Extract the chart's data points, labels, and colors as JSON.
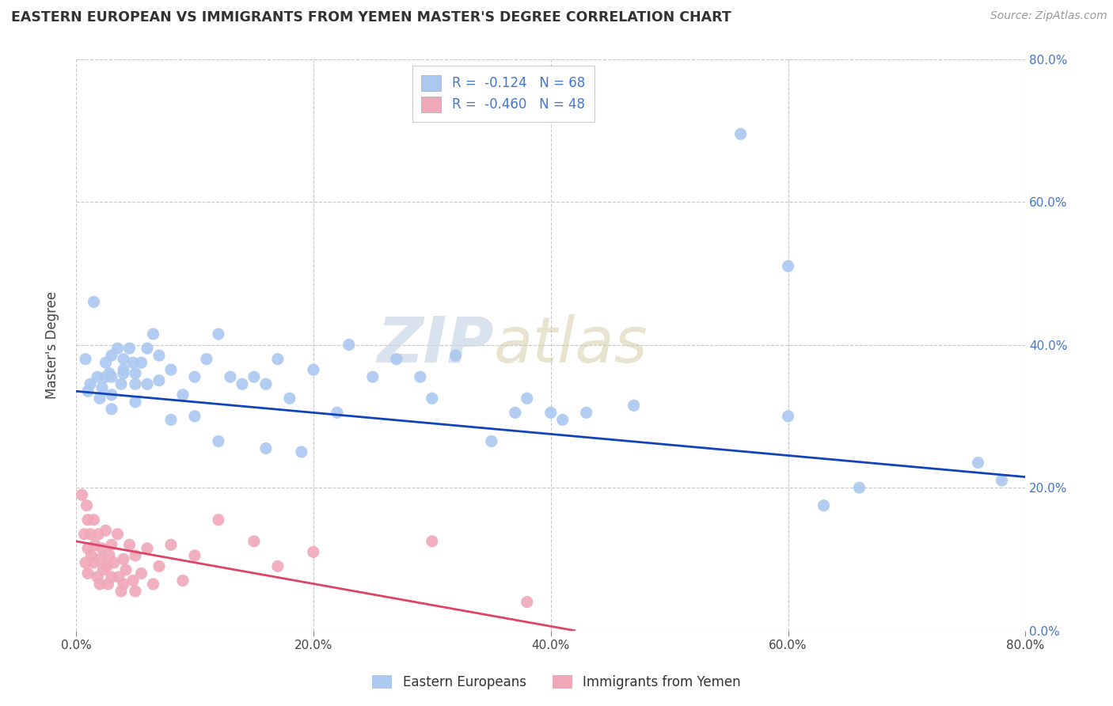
{
  "title": "EASTERN EUROPEAN VS IMMIGRANTS FROM YEMEN MASTER'S DEGREE CORRELATION CHART",
  "source": "Source: ZipAtlas.com",
  "ylabel": "Master's Degree",
  "xlim": [
    0.0,
    0.8
  ],
  "ylim": [
    0.0,
    0.8
  ],
  "ytick_values": [
    0.0,
    0.2,
    0.4,
    0.6,
    0.8
  ],
  "xtick_values": [
    0.0,
    0.2,
    0.4,
    0.6,
    0.8
  ],
  "xtick_labels": [
    "0.0%",
    "20.0%",
    "40.0%",
    "60.0%",
    "80.0%"
  ],
  "ytick_labels_right": [
    "0.0%",
    "20.0%",
    "40.0%",
    "60.0%",
    "80.0%"
  ],
  "grid_color": "#c8c8c8",
  "background_color": "#ffffff",
  "scatter_blue_color": "#aac8f0",
  "scatter_pink_color": "#f0a8b8",
  "line_blue_color": "#1144bb",
  "line_pink_color": "#dd4466",
  "marker_size": 120,
  "watermark_zip": "ZIP",
  "watermark_atlas": "atlas",
  "blue_points": [
    [
      0.008,
      0.38
    ],
    [
      0.01,
      0.335
    ],
    [
      0.012,
      0.345
    ],
    [
      0.015,
      0.46
    ],
    [
      0.018,
      0.355
    ],
    [
      0.02,
      0.325
    ],
    [
      0.022,
      0.34
    ],
    [
      0.025,
      0.355
    ],
    [
      0.025,
      0.375
    ],
    [
      0.028,
      0.36
    ],
    [
      0.03,
      0.385
    ],
    [
      0.03,
      0.355
    ],
    [
      0.03,
      0.33
    ],
    [
      0.03,
      0.31
    ],
    [
      0.035,
      0.395
    ],
    [
      0.038,
      0.345
    ],
    [
      0.04,
      0.365
    ],
    [
      0.04,
      0.38
    ],
    [
      0.04,
      0.36
    ],
    [
      0.045,
      0.395
    ],
    [
      0.048,
      0.375
    ],
    [
      0.05,
      0.36
    ],
    [
      0.05,
      0.345
    ],
    [
      0.05,
      0.32
    ],
    [
      0.055,
      0.375
    ],
    [
      0.06,
      0.345
    ],
    [
      0.06,
      0.395
    ],
    [
      0.065,
      0.415
    ],
    [
      0.07,
      0.35
    ],
    [
      0.07,
      0.385
    ],
    [
      0.08,
      0.295
    ],
    [
      0.08,
      0.365
    ],
    [
      0.09,
      0.33
    ],
    [
      0.1,
      0.355
    ],
    [
      0.1,
      0.3
    ],
    [
      0.11,
      0.38
    ],
    [
      0.12,
      0.265
    ],
    [
      0.12,
      0.415
    ],
    [
      0.13,
      0.355
    ],
    [
      0.14,
      0.345
    ],
    [
      0.15,
      0.355
    ],
    [
      0.16,
      0.255
    ],
    [
      0.16,
      0.345
    ],
    [
      0.17,
      0.38
    ],
    [
      0.18,
      0.325
    ],
    [
      0.19,
      0.25
    ],
    [
      0.2,
      0.365
    ],
    [
      0.22,
      0.305
    ],
    [
      0.23,
      0.4
    ],
    [
      0.25,
      0.355
    ],
    [
      0.27,
      0.38
    ],
    [
      0.29,
      0.355
    ],
    [
      0.3,
      0.325
    ],
    [
      0.32,
      0.385
    ],
    [
      0.35,
      0.265
    ],
    [
      0.37,
      0.305
    ],
    [
      0.38,
      0.325
    ],
    [
      0.4,
      0.305
    ],
    [
      0.41,
      0.295
    ],
    [
      0.43,
      0.305
    ],
    [
      0.47,
      0.315
    ],
    [
      0.56,
      0.695
    ],
    [
      0.6,
      0.51
    ],
    [
      0.6,
      0.3
    ],
    [
      0.63,
      0.175
    ],
    [
      0.66,
      0.2
    ],
    [
      0.76,
      0.235
    ],
    [
      0.78,
      0.21
    ]
  ],
  "pink_points": [
    [
      0.005,
      0.19
    ],
    [
      0.007,
      0.135
    ],
    [
      0.008,
      0.095
    ],
    [
      0.009,
      0.175
    ],
    [
      0.01,
      0.155
    ],
    [
      0.01,
      0.115
    ],
    [
      0.01,
      0.08
    ],
    [
      0.012,
      0.135
    ],
    [
      0.013,
      0.105
    ],
    [
      0.015,
      0.155
    ],
    [
      0.015,
      0.095
    ],
    [
      0.016,
      0.12
    ],
    [
      0.018,
      0.075
    ],
    [
      0.019,
      0.135
    ],
    [
      0.02,
      0.1
    ],
    [
      0.02,
      0.065
    ],
    [
      0.022,
      0.115
    ],
    [
      0.023,
      0.085
    ],
    [
      0.025,
      0.14
    ],
    [
      0.026,
      0.09
    ],
    [
      0.027,
      0.065
    ],
    [
      0.028,
      0.105
    ],
    [
      0.03,
      0.12
    ],
    [
      0.03,
      0.075
    ],
    [
      0.032,
      0.095
    ],
    [
      0.035,
      0.135
    ],
    [
      0.036,
      0.075
    ],
    [
      0.038,
      0.055
    ],
    [
      0.04,
      0.1
    ],
    [
      0.04,
      0.065
    ],
    [
      0.042,
      0.085
    ],
    [
      0.045,
      0.12
    ],
    [
      0.048,
      0.07
    ],
    [
      0.05,
      0.105
    ],
    [
      0.05,
      0.055
    ],
    [
      0.055,
      0.08
    ],
    [
      0.06,
      0.115
    ],
    [
      0.065,
      0.065
    ],
    [
      0.07,
      0.09
    ],
    [
      0.08,
      0.12
    ],
    [
      0.09,
      0.07
    ],
    [
      0.1,
      0.105
    ],
    [
      0.12,
      0.155
    ],
    [
      0.15,
      0.125
    ],
    [
      0.17,
      0.09
    ],
    [
      0.2,
      0.11
    ],
    [
      0.3,
      0.125
    ],
    [
      0.38,
      0.04
    ]
  ],
  "blue_line_x": [
    0.0,
    0.8
  ],
  "blue_line_y": [
    0.335,
    0.215
  ],
  "pink_line_x": [
    0.0,
    0.42
  ],
  "pink_line_y": [
    0.125,
    0.0
  ]
}
